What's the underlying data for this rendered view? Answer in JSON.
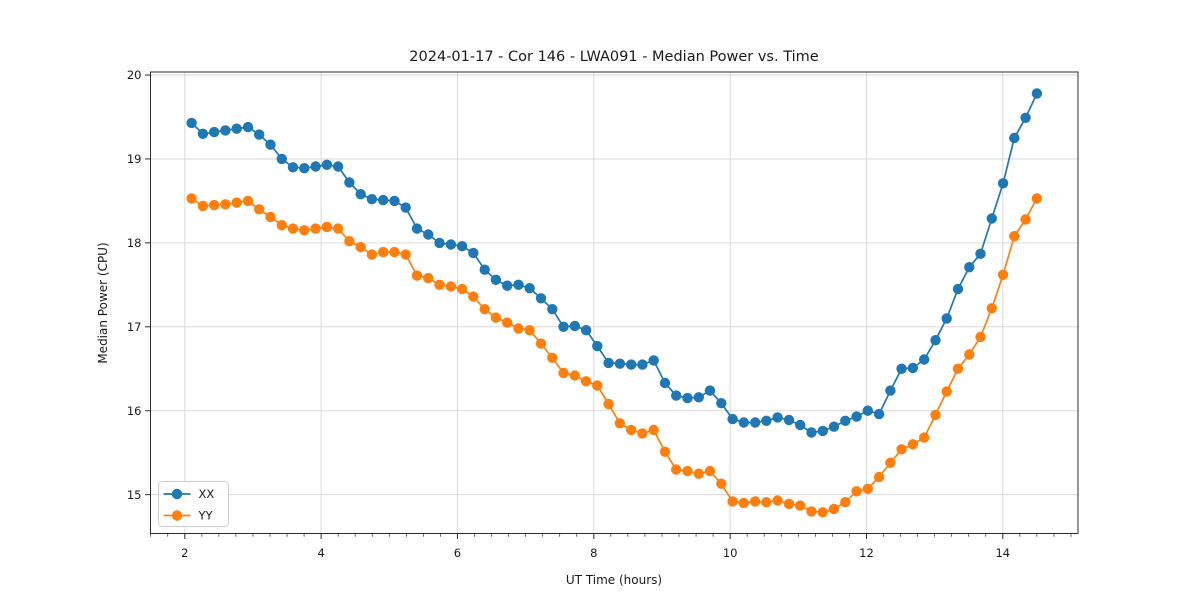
{
  "figure": {
    "background": "#ffffff"
  },
  "colors": {
    "grid": "#d9d9d9",
    "spine": "#2b2b2b",
    "tick": "#2b2b2b",
    "text": "#1a1a1a",
    "legend_border": "#cccccc",
    "legend_fill": "#ffffff",
    "series_xx": "#1f77b4",
    "series_yy": "#ff7f0e"
  },
  "chart_data": {
    "type": "line",
    "title": "2024-01-17 - Cor 146 - LWA091 - Median Power vs. Time",
    "xlabel": "UT Time (hours)",
    "ylabel": "Median Power (CPU)",
    "xlim": [
      1.497,
      15.103
    ],
    "ylim": [
      14.537,
      20.036
    ],
    "xticks": [
      2,
      4,
      6,
      8,
      10,
      12,
      14
    ],
    "yticks": [
      15,
      16,
      17,
      18,
      19,
      20
    ],
    "minor_xtick_step": 0.25,
    "grid": true,
    "legend_position": "lower left",
    "marker": "circle",
    "x": [
      2.1,
      2.265,
      2.431,
      2.596,
      2.761,
      2.927,
      3.092,
      3.257,
      3.423,
      3.588,
      3.753,
      3.919,
      4.084,
      4.249,
      4.415,
      4.58,
      4.745,
      4.911,
      5.076,
      5.241,
      5.407,
      5.572,
      5.737,
      5.903,
      6.068,
      6.233,
      6.399,
      6.564,
      6.729,
      6.895,
      7.06,
      7.225,
      7.391,
      7.556,
      7.721,
      7.887,
      8.052,
      8.217,
      8.383,
      8.548,
      8.713,
      8.879,
      9.044,
      9.209,
      9.375,
      9.54,
      9.705,
      9.871,
      10.036,
      10.201,
      10.367,
      10.532,
      10.697,
      10.863,
      11.028,
      11.193,
      11.359,
      11.524,
      11.689,
      11.855,
      12.02,
      12.185,
      12.351,
      12.516,
      12.681,
      12.847,
      13.012,
      13.177,
      13.343,
      13.508,
      13.673,
      13.839,
      14.004,
      14.169,
      14.335,
      14.5
    ],
    "series": [
      {
        "name": "XX",
        "color": "#1f77b4",
        "values": [
          19.43,
          19.3,
          19.32,
          19.34,
          19.36,
          19.38,
          19.29,
          19.17,
          19.0,
          18.9,
          18.89,
          18.91,
          18.93,
          18.91,
          18.72,
          18.58,
          18.52,
          18.51,
          18.5,
          18.42,
          18.17,
          18.1,
          18.0,
          17.98,
          17.96,
          17.88,
          17.68,
          17.56,
          17.49,
          17.5,
          17.46,
          17.34,
          17.21,
          17.0,
          17.01,
          16.96,
          16.77,
          16.57,
          16.56,
          16.55,
          16.55,
          16.6,
          16.33,
          16.18,
          16.15,
          16.16,
          16.24,
          16.09,
          15.9,
          15.86,
          15.86,
          15.88,
          15.92,
          15.89,
          15.83,
          15.74,
          15.76,
          15.81,
          15.88,
          15.93,
          16.0,
          15.96,
          16.24,
          16.5,
          16.51,
          16.61,
          16.84,
          17.1,
          17.45,
          17.71,
          17.87,
          18.29,
          18.71,
          19.25,
          19.49,
          19.78
        ]
      },
      {
        "name": "YY",
        "color": "#ff7f0e",
        "values": [
          18.53,
          18.44,
          18.45,
          18.46,
          18.48,
          18.5,
          18.4,
          18.31,
          18.21,
          18.17,
          18.15,
          18.17,
          18.19,
          18.17,
          18.02,
          17.95,
          17.86,
          17.89,
          17.89,
          17.86,
          17.61,
          17.58,
          17.5,
          17.48,
          17.45,
          17.36,
          17.21,
          17.11,
          17.05,
          16.98,
          16.96,
          16.8,
          16.63,
          16.45,
          16.42,
          16.35,
          16.3,
          16.08,
          15.85,
          15.77,
          15.73,
          15.77,
          15.51,
          15.3,
          15.28,
          15.25,
          15.28,
          15.13,
          14.92,
          14.9,
          14.92,
          14.91,
          14.93,
          14.89,
          14.87,
          14.8,
          14.79,
          14.83,
          14.91,
          15.04,
          15.07,
          15.21,
          15.38,
          15.54,
          15.6,
          15.68,
          15.95,
          16.23,
          16.5,
          16.67,
          16.88,
          17.22,
          17.62,
          18.08,
          18.28,
          18.53
        ]
      }
    ]
  }
}
